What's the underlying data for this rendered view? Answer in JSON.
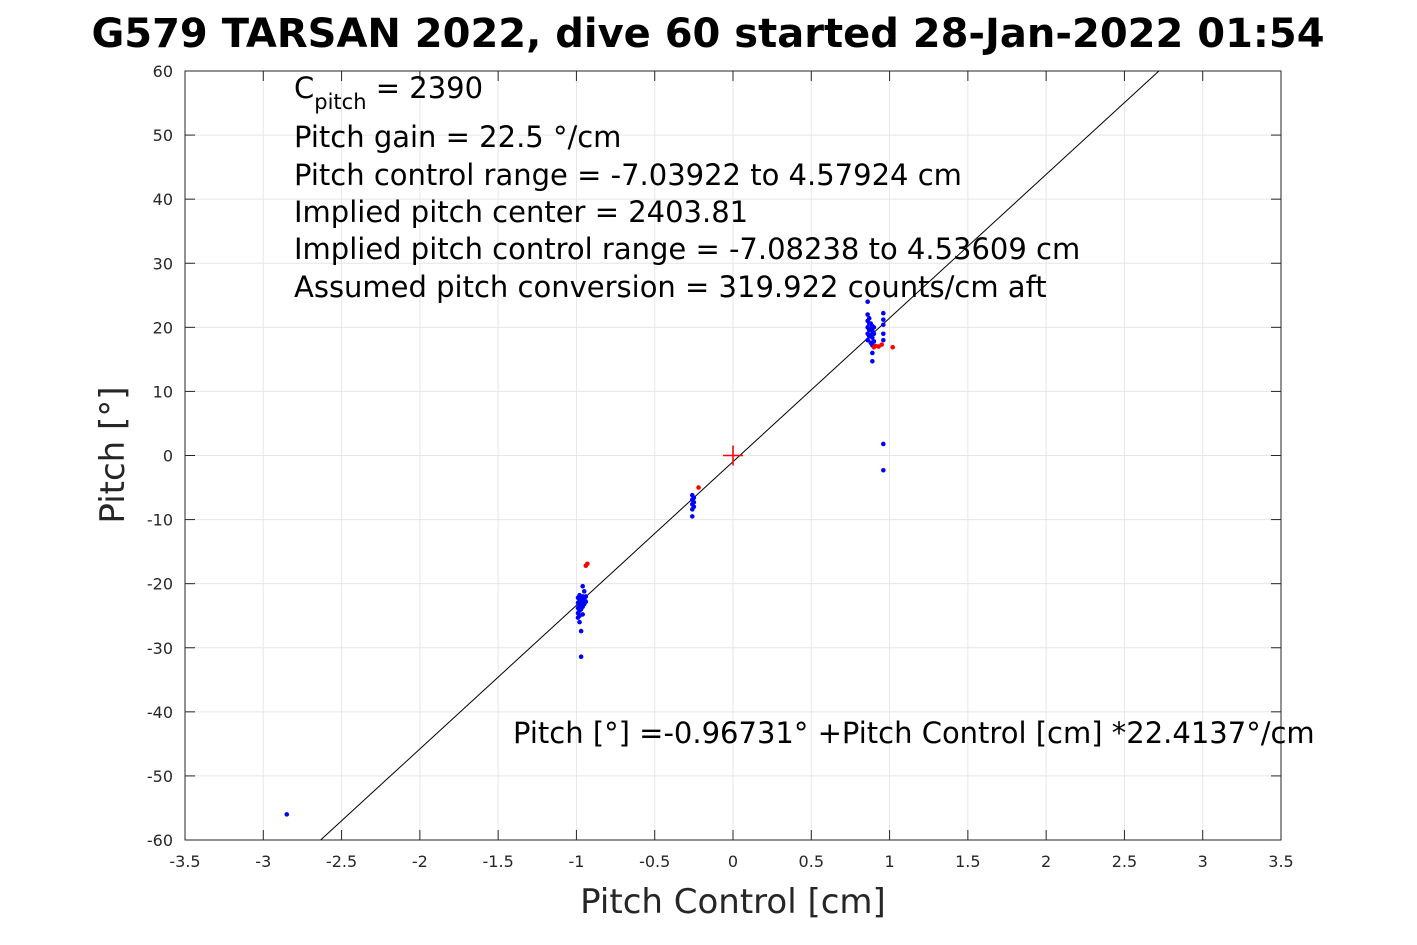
{
  "chart_data": {
    "type": "scatter",
    "title": "G579 TARSAN 2022, dive 60 started 28-Jan-2022 01:54",
    "xlabel": "Pitch Control [cm]",
    "ylabel": "Pitch [°]",
    "xlim": [
      -3.5,
      3.5
    ],
    "ylim": [
      -60,
      60
    ],
    "xticks": [
      -3.5,
      -3,
      -2.5,
      -2,
      -1.5,
      -1,
      -0.5,
      0,
      0.5,
      1,
      1.5,
      2,
      2.5,
      3,
      3.5
    ],
    "xtick_labels": [
      "-3.5",
      "-3",
      "-2.5",
      "-2",
      "-1.5",
      "-1",
      "-0.5",
      "0",
      "0.5",
      "1",
      "1.5",
      "2",
      "2.5",
      "3",
      "3.5"
    ],
    "yticks": [
      60,
      50,
      40,
      30,
      20,
      10,
      0,
      -10,
      -20,
      -30,
      -40,
      -50,
      -60
    ],
    "ytick_labels": [
      "60",
      "50",
      "40",
      "30",
      "20",
      "10",
      "0",
      "-10",
      "-20",
      "-30",
      "-40",
      "-50",
      "-60"
    ],
    "grid": true,
    "annotations": {
      "cpitch_main": "C",
      "cpitch_sub": "pitch",
      "cpitch_value": " = 2390",
      "gain": "Pitch gain = 22.5 °/cm",
      "control_range": "Pitch control range = -7.03922 to 4.57924 cm",
      "implied_center": "Implied pitch center = 2403.81",
      "implied_range": "Implied pitch control range = -7.08238 to 4.53609 cm",
      "conversion": "Assumed pitch conversion = 319.922 counts/cm aft",
      "fit_equation": "Pitch [°] =-0.96731°  +Pitch Control [cm] *22.4137°/cm"
    },
    "fit_line": {
      "intercept": -0.96731,
      "slope": 22.4137,
      "color": "#000000"
    },
    "center_marker": {
      "x": 0,
      "y": 0,
      "color": "#ff0000"
    },
    "series": [
      {
        "color": "#0000ff",
        "points": [
          [
            -2.85,
            -56
          ],
          [
            -0.99,
            -22.2
          ],
          [
            -0.99,
            -23.0
          ],
          [
            -0.99,
            -23.8
          ],
          [
            -0.99,
            -24.6
          ],
          [
            -0.99,
            -25.3
          ],
          [
            -0.98,
            -21.8
          ],
          [
            -0.98,
            -22.6
          ],
          [
            -0.98,
            -23.4
          ],
          [
            -0.98,
            -24.2
          ],
          [
            -0.98,
            -25.0
          ],
          [
            -0.98,
            -26.0
          ],
          [
            -0.97,
            -22.4
          ],
          [
            -0.97,
            -23.2
          ],
          [
            -0.97,
            -24.0
          ],
          [
            -0.97,
            -27.4
          ],
          [
            -0.97,
            -31.4
          ],
          [
            -0.96,
            -20.4
          ],
          [
            -0.96,
            -22.0
          ],
          [
            -0.96,
            -22.8
          ],
          [
            -0.96,
            -23.6
          ],
          [
            -0.96,
            -24.8
          ],
          [
            -0.95,
            -21.2
          ],
          [
            -0.95,
            -22.4
          ],
          [
            -0.95,
            -23.2
          ],
          [
            -0.94,
            -22.0
          ],
          [
            -0.94,
            -22.8
          ],
          [
            -0.26,
            -6.2
          ],
          [
            -0.26,
            -6.9
          ],
          [
            -0.26,
            -7.6
          ],
          [
            -0.26,
            -8.4
          ],
          [
            -0.26,
            -9.5
          ],
          [
            -0.25,
            -6.6
          ],
          [
            -0.25,
            -7.3
          ],
          [
            -0.25,
            -8.0
          ],
          [
            0.86,
            18.0
          ],
          [
            0.86,
            19.0
          ],
          [
            0.86,
            20.0
          ],
          [
            0.86,
            21.0
          ],
          [
            0.86,
            22.0
          ],
          [
            0.86,
            24.0
          ],
          [
            0.87,
            18.6
          ],
          [
            0.87,
            19.6
          ],
          [
            0.87,
            20.6
          ],
          [
            0.87,
            21.4
          ],
          [
            0.88,
            17.6
          ],
          [
            0.88,
            18.8
          ],
          [
            0.88,
            19.8
          ],
          [
            0.88,
            20.6
          ],
          [
            0.89,
            16.0
          ],
          [
            0.89,
            17.2
          ],
          [
            0.89,
            18.4
          ],
          [
            0.89,
            19.4
          ],
          [
            0.89,
            20.2
          ],
          [
            0.89,
            14.7
          ],
          [
            0.9,
            17.8
          ],
          [
            0.9,
            19.0
          ],
          [
            0.9,
            20.0
          ],
          [
            0.96,
            18.0
          ],
          [
            0.96,
            19.0
          ],
          [
            0.96,
            20.4
          ],
          [
            0.96,
            21.2
          ],
          [
            0.96,
            22.2
          ],
          [
            0.96,
            1.8
          ],
          [
            0.96,
            -2.3
          ]
        ]
      },
      {
        "color": "#ff0000",
        "points": [
          [
            -0.93,
            -16.9
          ],
          [
            -0.94,
            -17.2
          ],
          [
            -0.22,
            -5.0
          ],
          [
            0.9,
            16.9
          ],
          [
            0.91,
            17.1
          ],
          [
            0.93,
            17.0
          ],
          [
            0.95,
            17.3
          ],
          [
            1.02,
            16.9
          ]
        ]
      }
    ]
  }
}
